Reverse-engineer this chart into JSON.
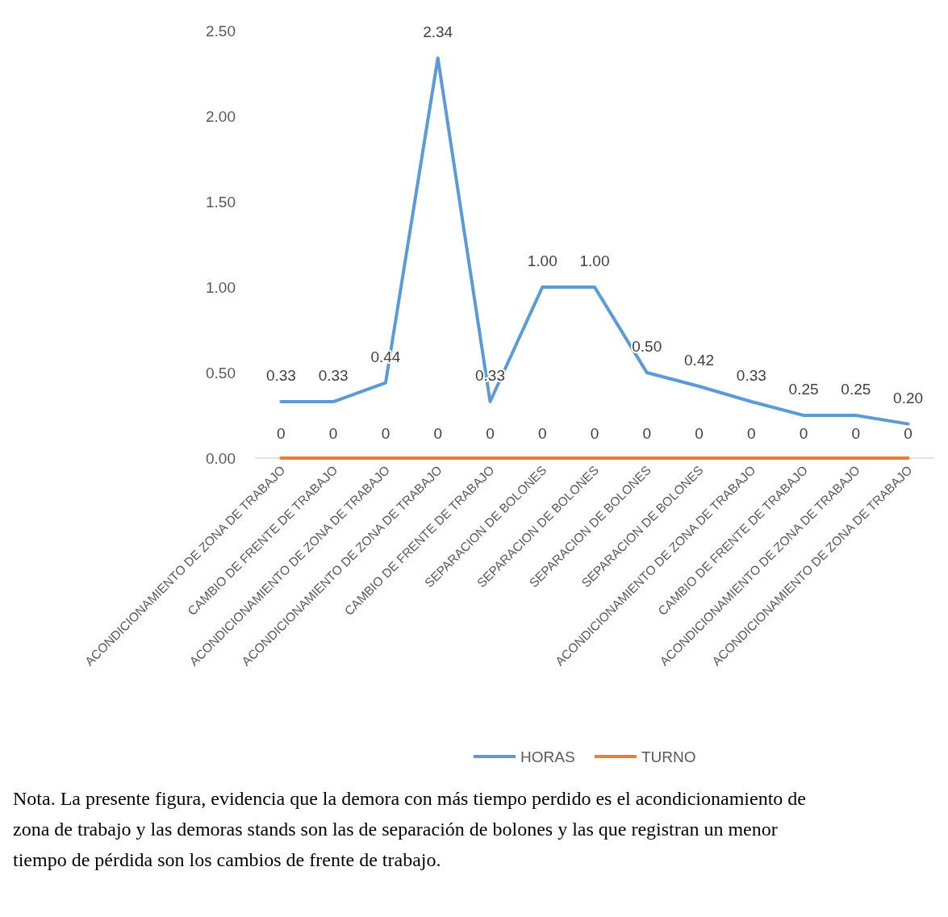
{
  "chart_data": {
    "type": "line",
    "categories": [
      "ACONDICIONAMIENTO DE ZONA DE TRABAJO",
      "CAMBIO DE FRENTE DE TRABAJO",
      "ACONDICIONAMIENTO DE ZONA DE TRABAJO",
      "ACONDICIONAMIENTO DE ZONA DE TRABAJO",
      "CAMBIO DE FRENTE DE TRABAJO",
      "SEPARACION DE BOLONES",
      "SEPARACION DE BOLONES",
      "SEPARACION DE BOLONES",
      "SEPARACION DE BOLONES",
      "ACONDICIONAMIENTO DE ZONA DE TRABAJO",
      "CAMBIO DE FRENTE DE TRABAJO",
      "ACONDICIONAMIENTO DE ZONA DE TRABAJO",
      "ACONDICIONAMIENTO DE ZONA DE TRABAJO"
    ],
    "series": [
      {
        "name": "HORAS",
        "color": "#5b9bd5",
        "values": [
          0.33,
          0.33,
          0.44,
          2.34,
          0.33,
          1.0,
          1.0,
          0.5,
          0.42,
          0.33,
          0.25,
          0.25,
          0.2
        ],
        "value_labels": [
          "0.33",
          "0.33",
          "0.44",
          "2.34",
          "0.33",
          "1.00",
          "1.00",
          "0.50",
          "0.42",
          "0.33",
          "0.25",
          "0.25",
          "0.20"
        ]
      },
      {
        "name": "TURNO",
        "color": "#ed7d31",
        "values": [
          0,
          0,
          0,
          0,
          0,
          0,
          0,
          0,
          0,
          0,
          0,
          0,
          0
        ],
        "value_labels": [
          "0",
          "0",
          "0",
          "0",
          "0",
          "0",
          "0",
          "0",
          "0",
          "0",
          "0",
          "0",
          "0"
        ]
      }
    ],
    "ylim": [
      0,
      2.5
    ],
    "yticks": [
      {
        "value": 0,
        "label": "0.00"
      },
      {
        "value": 0.5,
        "label": "0.50"
      },
      {
        "value": 1,
        "label": "1.00"
      },
      {
        "value": 1.5,
        "label": "1.50"
      },
      {
        "value": 2,
        "label": "2.00"
      },
      {
        "value": 2.5,
        "label": "2.50"
      }
    ],
    "grid": false,
    "legend": "bottom",
    "marker": "none",
    "line_style": "solid",
    "annotations": [
      "Nota. La presente figura, evidencia que la demora con más tiempo perdido es el acondicionamiento de zona de trabajo y las demoras stands son las de separación de bolones y las que registran un menor tiempo de pérdida son los cambios de frente de trabajo."
    ]
  }
}
